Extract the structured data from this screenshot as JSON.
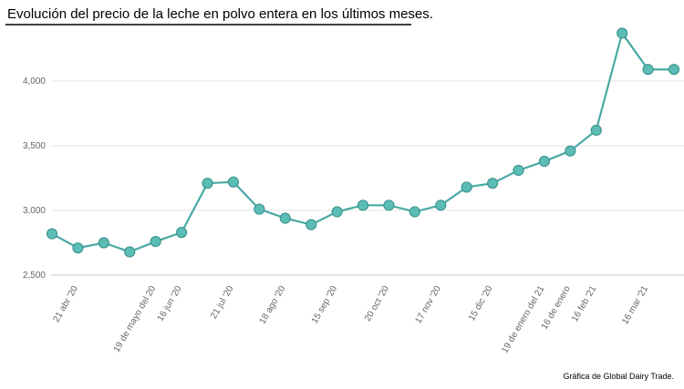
{
  "chart_data": {
    "type": "line",
    "title": "Evolución del precio de la leche en polvo entera en los últimos meses.",
    "source": "Gráfica de Global Dairy Trade.",
    "categories": [
      null,
      "21 abr '20",
      null,
      null,
      "19 de mayo del 20",
      "16 jun '20",
      null,
      "21 jul '20",
      null,
      "18 ago '20",
      null,
      "15 sep '20",
      null,
      "20 oct '20",
      null,
      "17 nov '20",
      null,
      "15 dic '20",
      null,
      "19 de enero del 21",
      "16 de enero",
      "16 feb '21",
      null,
      "16 mar '21",
      null
    ],
    "values": [
      2820,
      2710,
      2750,
      2680,
      2760,
      2830,
      3210,
      3220,
      3010,
      2940,
      2890,
      2990,
      3040,
      3040,
      2990,
      3040,
      3180,
      3210,
      3310,
      3380,
      3460,
      3620,
      4370,
      4090,
      4090
    ],
    "color": "#4aa9a4",
    "ylim": [
      2500,
      4500
    ],
    "yticks": [
      {
        "value": 2500,
        "label": "2,500"
      },
      {
        "value": 3000,
        "label": "3,000"
      },
      {
        "value": 3500,
        "label": "3,500"
      },
      {
        "value": 4000,
        "label": "4,000"
      }
    ],
    "grid": true
  }
}
